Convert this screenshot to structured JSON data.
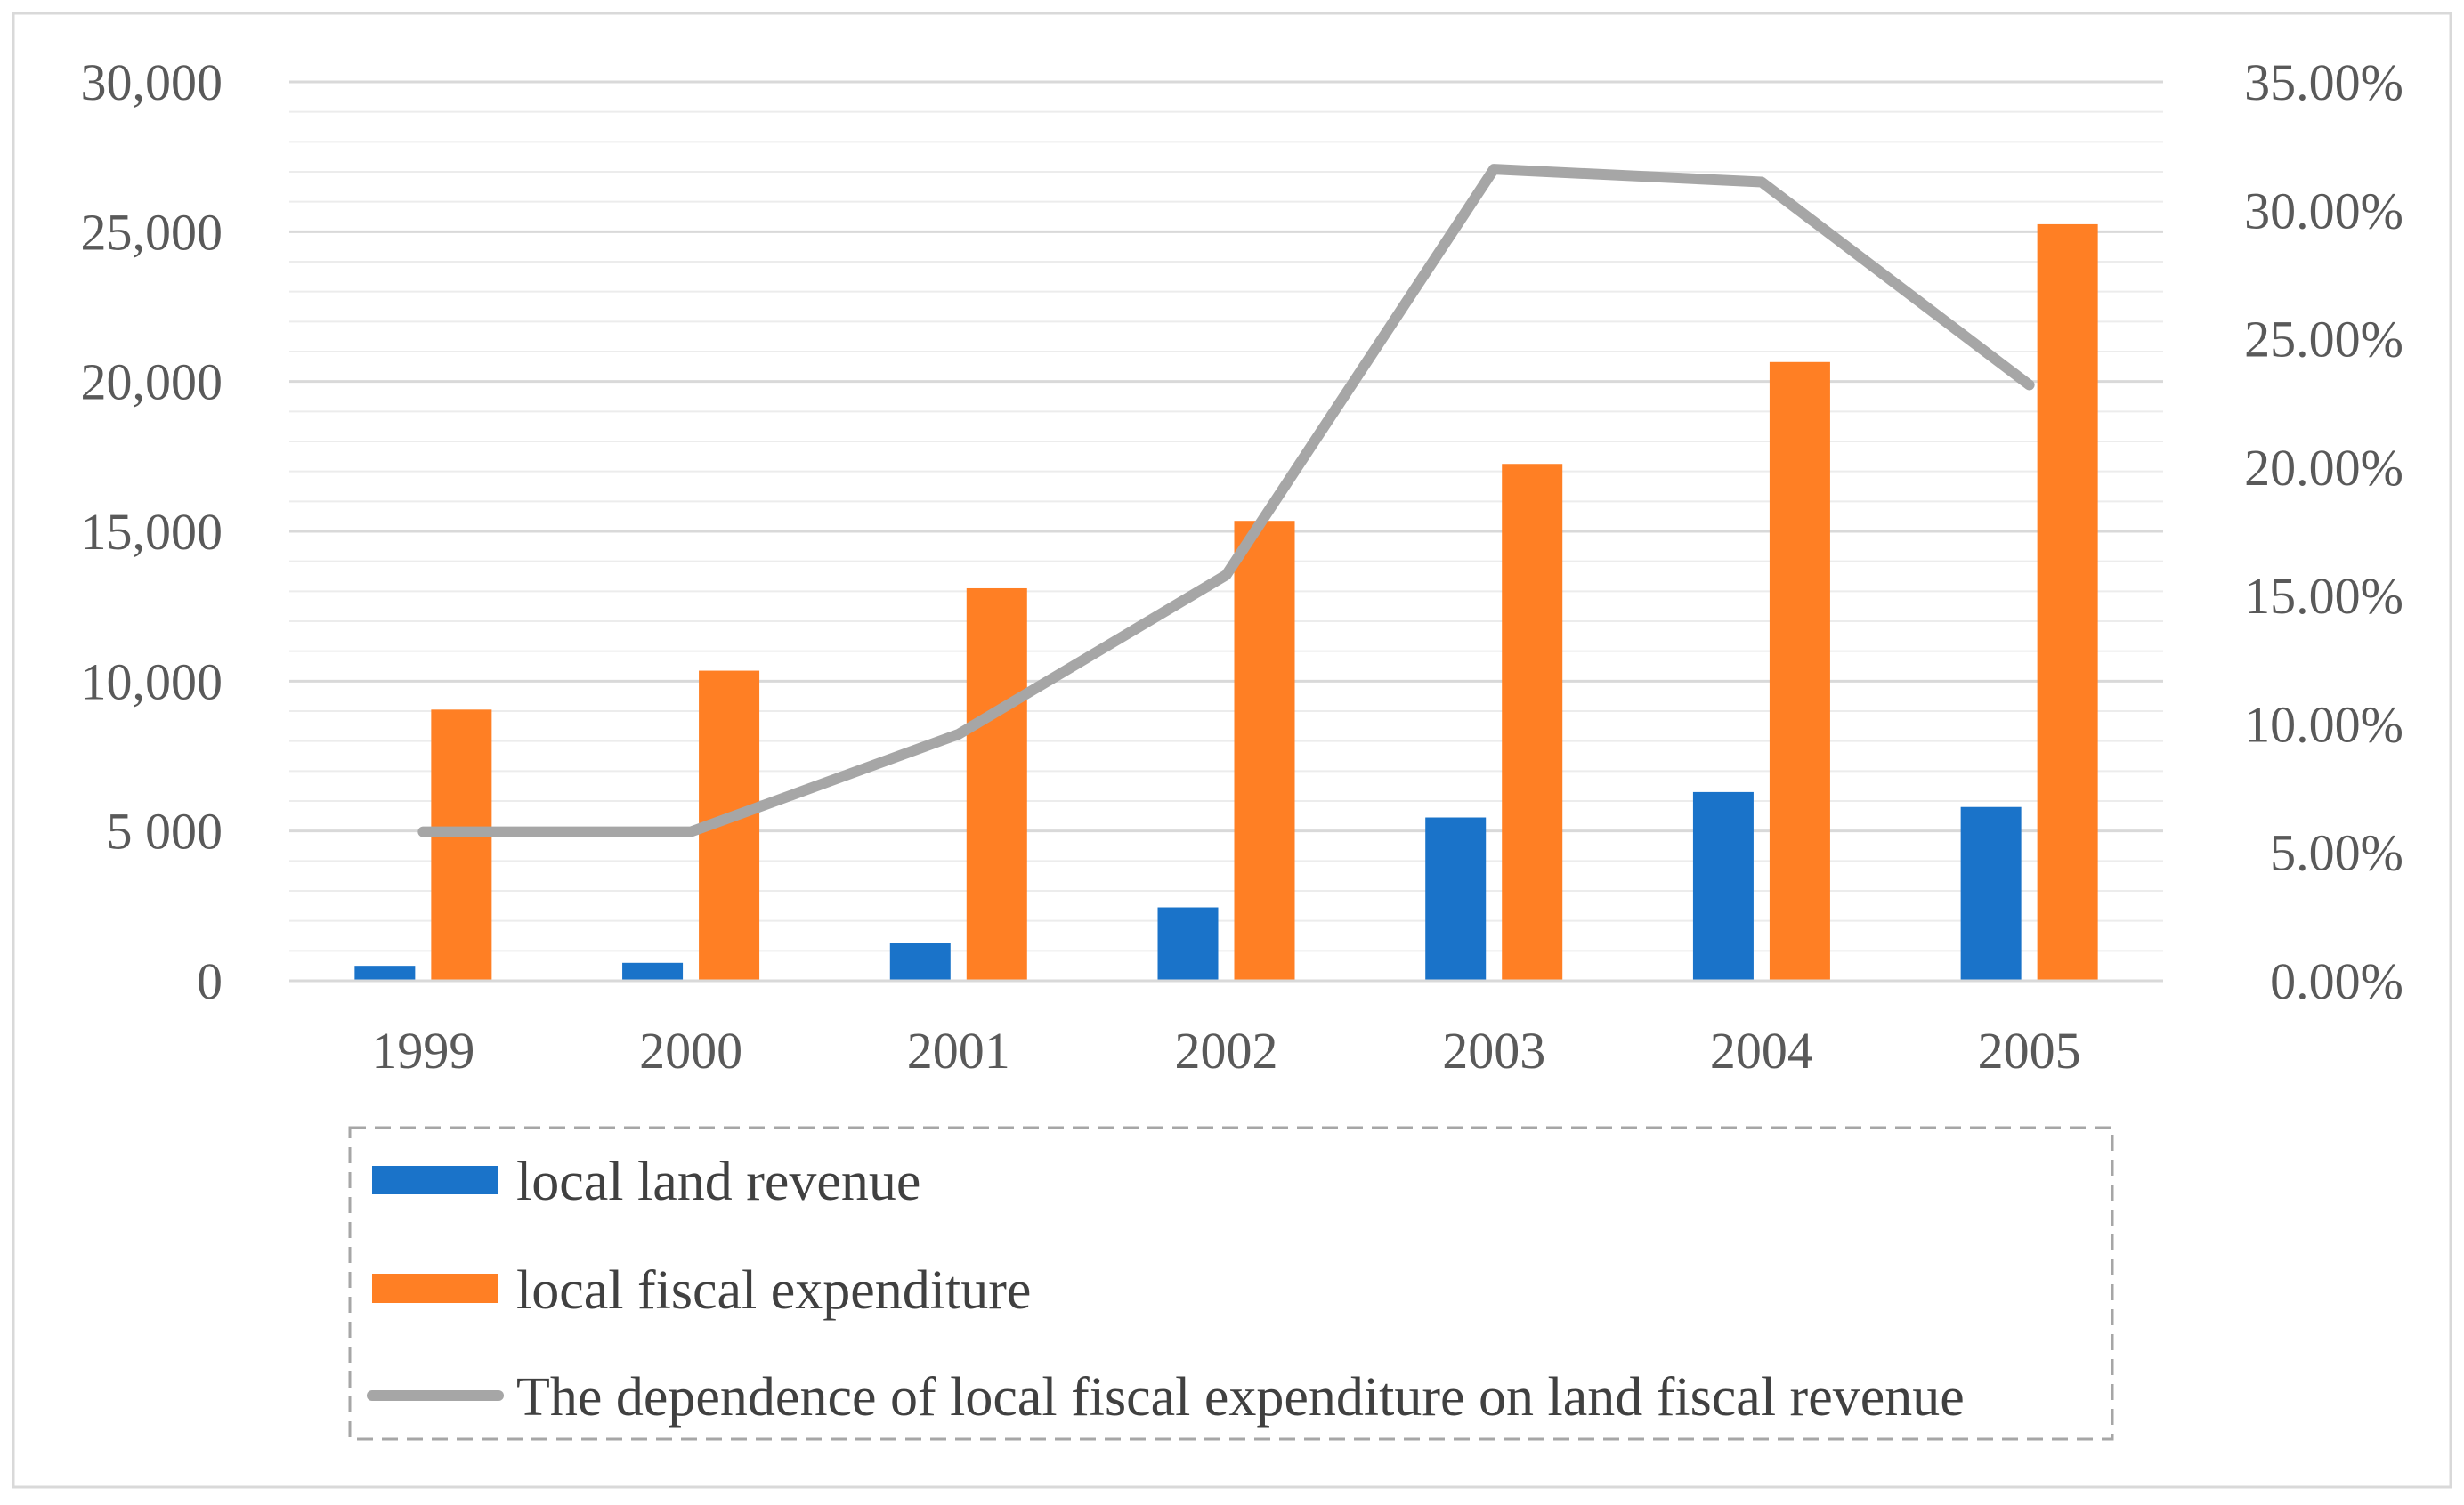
{
  "chart_data": {
    "type": "bar",
    "categories": [
      "1999",
      "2000",
      "2001",
      "2002",
      "2003",
      "2004",
      "2005"
    ],
    "series": [
      {
        "name": "local land revenue",
        "type": "bar",
        "axis": "left",
        "color": "#1a73c9",
        "values": [
          500,
          600,
          1250,
          2450,
          5450,
          6300,
          5800
        ]
      },
      {
        "name": "local fiscal expenditure",
        "type": "bar",
        "axis": "left",
        "color": "#ff7f24",
        "values": [
          9050,
          10350,
          13100,
          15350,
          17250,
          20650,
          25250
        ]
      },
      {
        "name": "The dependence of local fiscal expenditure on land fiscal revenue",
        "type": "line",
        "axis": "right",
        "color": "#a6a6a6",
        "values": [
          5.8,
          5.8,
          9.6,
          15.8,
          31.6,
          31.1,
          23.2
        ]
      }
    ],
    "y_left": {
      "range": [
        0,
        30000
      ],
      "ticks": [
        0,
        5000,
        10000,
        15000,
        20000,
        25000,
        30000
      ],
      "tick_labels": [
        "0",
        "5 000",
        "10,000",
        "15,000",
        "20,000",
        "25,000",
        "30,000"
      ]
    },
    "y_right": {
      "range": [
        0,
        35
      ],
      "ticks": [
        0,
        5,
        10,
        15,
        20,
        25,
        30,
        35
      ],
      "tick_labels": [
        "0.00%",
        "5.00%",
        "10.00%",
        "15.00%",
        "20.00%",
        "25.00%",
        "30.00%",
        "35.00%"
      ]
    },
    "grid": true,
    "legend_position": "bottom"
  }
}
